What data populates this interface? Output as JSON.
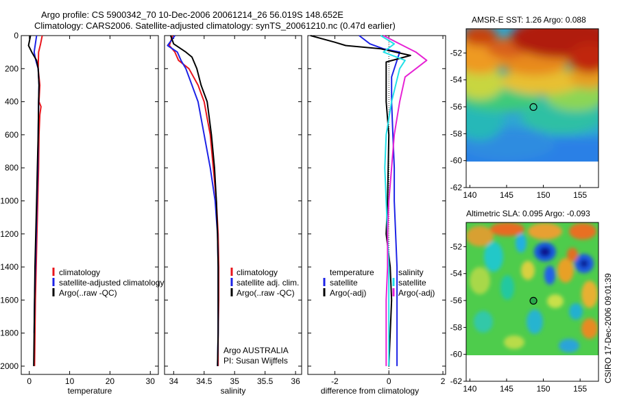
{
  "title": {
    "line1": "Argo profile: CS 5900342_70 10-Dec-2006 20061214_26 56.019S 148.652E",
    "line2": "Climatology: CARS2006. Satellite-adjusted climatology: synTS_20061210.nc (0.47d earlier)"
  },
  "side_label": "CSIRO 17-Dec-2006 09:01:39",
  "colors": {
    "climatology": "#e8141b",
    "satellite": "#1c22e6",
    "argo": "#000000",
    "sat_diff": "#22e0e8",
    "argo_diff": "#e622d4"
  },
  "chart_data": [
    {
      "type": "line",
      "name": "temperature",
      "xlabel": "temperature",
      "xlim": [
        -2,
        32
      ],
      "ylim": [
        2050,
        0
      ],
      "xticks": [
        "0",
        "10",
        "20",
        "30"
      ],
      "xtick_values": [
        0,
        10,
        20,
        30
      ],
      "yticks": [
        "0",
        "200",
        "400",
        "600",
        "800",
        "1000",
        "1200",
        "1400",
        "1600",
        "1800",
        "2000"
      ],
      "ytick_values": [
        0,
        200,
        400,
        600,
        800,
        1000,
        1200,
        1400,
        1600,
        1800,
        2000
      ],
      "legend": [
        "climatology",
        "satellite-adjusted climatology",
        "Argo(..raw -QC)"
      ],
      "series": [
        {
          "name": "climatology",
          "color": "#e8141b",
          "x": [
            3.2,
            2.8,
            2.3,
            2.2,
            2.6,
            2.4,
            2.9,
            2.6,
            2.4,
            2.3,
            2.1,
            1.9,
            1.7,
            1.5,
            1.4,
            1.3
          ],
          "y": [
            0,
            50,
            100,
            200,
            300,
            400,
            430,
            480,
            600,
            800,
            1000,
            1200,
            1400,
            1600,
            1800,
            2000
          ]
        },
        {
          "name": "satellite-adjusted climatology",
          "color": "#1c22e6",
          "x": [
            1.8,
            1.5,
            1.2,
            1.6,
            2.2,
            2.4,
            2.3,
            2.2,
            2.1,
            1.9,
            1.7,
            1.5,
            1.3,
            1.2
          ],
          "y": [
            0,
            50,
            100,
            150,
            200,
            300,
            400,
            600,
            800,
            1000,
            1200,
            1400,
            1600,
            1800
          ]
        },
        {
          "name": "Argo(..raw -QC)",
          "color": "#000000",
          "x": [
            0.3,
            -0.2,
            0.6,
            1.8,
            2.2,
            2.4,
            2.3,
            2.2,
            2.0,
            1.8,
            1.6,
            1.4,
            1.3,
            1.2,
            1.1
          ],
          "y": [
            0,
            60,
            100,
            150,
            200,
            300,
            400,
            600,
            800,
            1000,
            1200,
            1400,
            1600,
            1800,
            2000
          ]
        }
      ]
    },
    {
      "type": "line",
      "name": "salinity",
      "xlabel": "salinity",
      "xlim": [
        33.85,
        36.1
      ],
      "ylim": [
        2050,
        0
      ],
      "xticks": [
        "34",
        "34.5",
        "35",
        "35.5",
        "36"
      ],
      "xtick_values": [
        34,
        34.5,
        35,
        35.5,
        36
      ],
      "legend": [
        "climatology",
        "satellite adj. clim.",
        "Argo(..raw -QC)"
      ],
      "annotations": [
        "Argo AUSTRALIA",
        "PI: Susan Wijffels"
      ],
      "series": [
        {
          "name": "climatology",
          "color": "#e8141b",
          "x": [
            33.98,
            33.93,
            34.02,
            34.08,
            34.25,
            34.4,
            34.5,
            34.55,
            34.6,
            34.65,
            34.7,
            34.73,
            34.74,
            34.74,
            34.73,
            34.73
          ],
          "y": [
            0,
            60,
            100,
            150,
            200,
            300,
            400,
            500,
            600,
            800,
            1000,
            1200,
            1400,
            1600,
            1800,
            2000
          ]
        },
        {
          "name": "satellite adj. clim.",
          "color": "#1c22e6",
          "x": [
            34.02,
            33.9,
            34.06,
            34.12,
            34.2,
            34.3,
            34.4,
            34.5,
            34.6,
            34.68,
            34.72,
            34.73,
            34.73,
            34.73,
            34.72
          ],
          "y": [
            0,
            60,
            100,
            150,
            200,
            300,
            400,
            600,
            800,
            1000,
            1200,
            1400,
            1600,
            1800,
            2000
          ]
        },
        {
          "name": "Argo(..raw -QC)",
          "color": "#000000",
          "x": [
            33.95,
            34.0,
            34.2,
            34.3,
            34.38,
            34.45,
            34.55,
            34.62,
            34.67,
            34.7,
            34.72,
            34.73,
            34.73,
            34.73,
            34.72
          ],
          "y": [
            0,
            50,
            100,
            130,
            200,
            300,
            400,
            600,
            800,
            1000,
            1200,
            1400,
            1600,
            1800,
            2000
          ]
        }
      ]
    },
    {
      "type": "line",
      "name": "difference",
      "xlabel": "difference from climatology",
      "xlim": [
        -3,
        2.1
      ],
      "ylim": [
        2050,
        0
      ],
      "xticks": [
        "-2",
        "0",
        "2"
      ],
      "xtick_values": [
        -2,
        0,
        2
      ],
      "legend_left_title": "temperature",
      "legend_right_title": "salinity",
      "legend": [
        "satellite",
        "Argo(-adj)",
        "satellite",
        "Argo(-adj)"
      ],
      "series": [
        {
          "name": "temperature satellite",
          "color": "#1c22e6",
          "x": [
            -1.1,
            -0.7,
            -0.2,
            0.4,
            0.3,
            0.1,
            0.1,
            0.15,
            0.2,
            0.2,
            0.25,
            0.3,
            0.3,
            0.3
          ],
          "y": [
            0,
            50,
            80,
            100,
            150,
            250,
            400,
            600,
            800,
            1000,
            1200,
            1400,
            1600,
            2000
          ]
        },
        {
          "name": "temperature Argo(-adj)",
          "color": "#000000",
          "x": [
            -2.9,
            -2.0,
            -1.6,
            -0.3,
            0.8,
            -0.1,
            -0.1,
            -0.1,
            0.0,
            -0.05,
            -0.1,
            0.05,
            0.1,
            0.05,
            0.0
          ],
          "y": [
            0,
            40,
            60,
            80,
            120,
            160,
            250,
            400,
            600,
            1000,
            1200,
            1400,
            1600,
            1800,
            2000
          ]
        },
        {
          "name": "salinity satellite",
          "color": "#22e0e8",
          "x": [
            -0.3,
            0.2,
            -0.2,
            0.6,
            0.4,
            0.1,
            -0.1,
            -0.15,
            -0.1,
            -0.05,
            0.0,
            0.0,
            0.0
          ],
          "y": [
            0,
            50,
            100,
            150,
            200,
            400,
            600,
            800,
            1000,
            1200,
            1400,
            1600,
            2000
          ]
        },
        {
          "name": "salinity Argo(-adj)",
          "color": "#e622d4",
          "x": [
            -0.2,
            0.4,
            1.0,
            1.4,
            0.6,
            0.4,
            0.2,
            0.1,
            0.0,
            -0.05,
            -0.05,
            -0.1,
            -0.1
          ],
          "y": [
            0,
            50,
            100,
            150,
            250,
            400,
            600,
            800,
            1000,
            1200,
            1400,
            1600,
            2000
          ]
        }
      ]
    },
    {
      "type": "heatmap",
      "name": "sst map",
      "title": "AMSR-E SST: 1.26 Argo: 0.088",
      "xlim": [
        139.5,
        157.5
      ],
      "ylim": [
        -62,
        -50.2
      ],
      "xticks": [
        "140",
        "145",
        "150",
        "155"
      ],
      "xtick_values": [
        140,
        145,
        150,
        155
      ],
      "yticks": [
        "-52",
        "-54",
        "-56",
        "-58",
        "-60",
        "-62"
      ],
      "ytick_values": [
        -52,
        -54,
        -56,
        -58,
        -60,
        -62
      ],
      "data_bottom": -60,
      "marker": {
        "lon": 148.65,
        "lat": -56.02
      }
    },
    {
      "type": "heatmap",
      "name": "sla map",
      "title": "Altimetric SLA: 0.095 Argo: -0.093",
      "xlim": [
        139.5,
        157.5
      ],
      "ylim": [
        -62,
        -50.2
      ],
      "xticks": [
        "140",
        "145",
        "150",
        "155"
      ],
      "xtick_values": [
        140,
        145,
        150,
        155
      ],
      "yticks": [
        "-52",
        "-54",
        "-56",
        "-58",
        "-60",
        "-62"
      ],
      "ytick_values": [
        -52,
        -54,
        -56,
        -58,
        -60,
        -62
      ],
      "data_bottom": -60,
      "marker": {
        "lon": 148.65,
        "lat": -56.02
      }
    }
  ]
}
